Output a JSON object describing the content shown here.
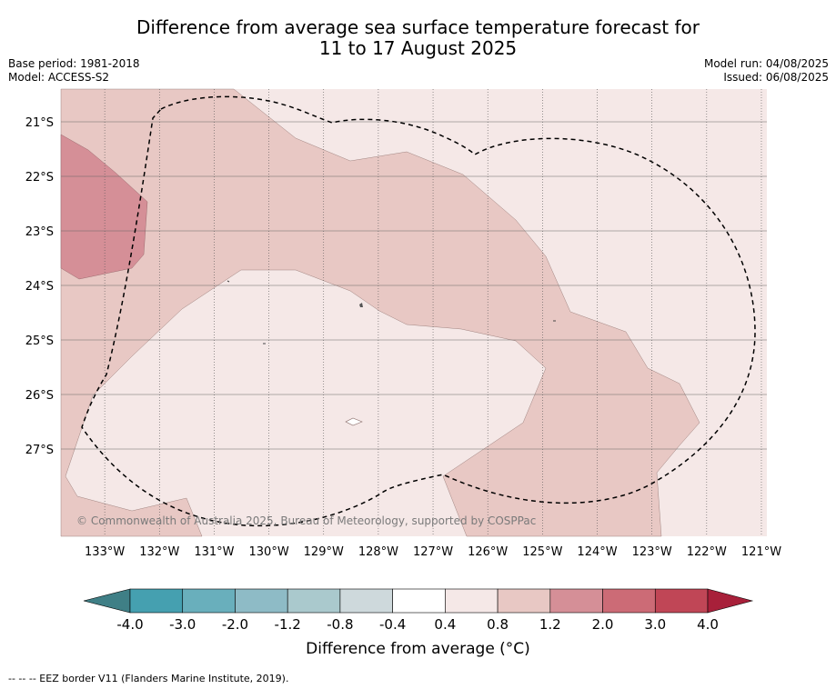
{
  "title": {
    "line1": "Difference from average sea surface temperature forecast for",
    "line2": "11 to 17 August 2025"
  },
  "meta_left": {
    "base_period": "Base period: 1981-2018",
    "model": "Model: ACCESS-S2"
  },
  "meta_right": {
    "model_run": "Model run: 04/08/2025",
    "issued": "Issued: 06/08/2025"
  },
  "map": {
    "lon_ticks": [
      "133°W",
      "132°W",
      "131°W",
      "130°W",
      "129°W",
      "128°W",
      "127°W",
      "126°W",
      "125°W",
      "124°W",
      "123°W",
      "122°W",
      "121°W"
    ],
    "lat_ticks": [
      "21°S",
      "22°S",
      "23°S",
      "24°S",
      "25°S",
      "26°S",
      "27°S"
    ],
    "extent": {
      "lon": [
        -133.8,
        -120.9
      ],
      "lat": [
        -28.6,
        -20.4
      ]
    },
    "gridlines": true,
    "copyright": "© Commonwealth of Australia 2025, Bureau of Meteorology, supported by COSPPac",
    "category_colors": {
      "0.4 to 0.8": "#f5e8e7",
      "0.8 to 1.2": "#e8c8c4",
      "1.2 to 2.0": "#d58f97",
      "0.4 to -0.4": "#ffffff"
    },
    "eez_border_style": "dashed black"
  },
  "colorbar": {
    "labels": [
      "-4.0",
      "-3.0",
      "-2.0",
      "-1.2",
      "-0.8",
      "-0.4",
      "0.4",
      "0.8",
      "1.2",
      "2.0",
      "3.0",
      "4.0"
    ],
    "colors": [
      "#3f7f86",
      "#45a0b0",
      "#69afbc",
      "#8ebbc6",
      "#aac9cd",
      "#ced9dc",
      "#ffffff",
      "#f5e8e7",
      "#e8c8c4",
      "#d58f97",
      "#cc6b76",
      "#c04656",
      "#a8203a"
    ],
    "title": "Difference from average (°C)"
  },
  "footer": "--  --  -- EEZ border V11 (Flanders Marine Institute, 2019)."
}
